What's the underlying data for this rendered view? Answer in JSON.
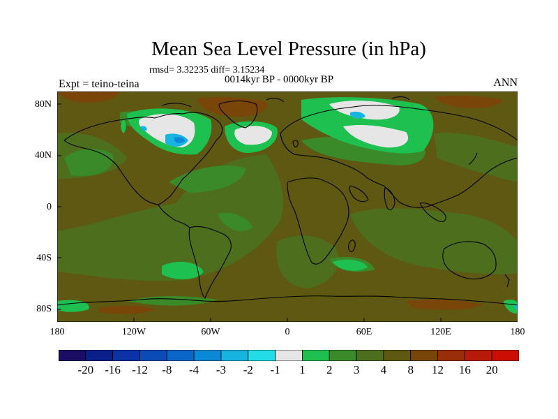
{
  "title": "Mean Sea Level Pressure (in hPa)",
  "stats": "rmsd= 3.32235 diff= 3.15234",
  "period": "0014kyr BP - 0000kyr BP",
  "experiment": "Expt = teino-teina",
  "season": "ANN",
  "lat_labels": [
    "80N",
    "40N",
    "0",
    "40S",
    "80S"
  ],
  "lon_labels": [
    "180",
    "120W",
    "60W",
    "0",
    "60E",
    "120E",
    "180"
  ],
  "colorbar": {
    "labels": [
      "-20",
      "-16",
      "-12",
      "-8",
      "-4",
      "-3",
      "-2",
      "-1",
      "1",
      "2",
      "3",
      "4",
      "8",
      "12",
      "16",
      "20"
    ],
    "colors": [
      "#1b0d63",
      "#0b1f8a",
      "#0d32a6",
      "#0a4bb5",
      "#0a66c8",
      "#0a8ad6",
      "#17b4e0",
      "#22dce8",
      "#e6e6e6",
      "#1ec04f",
      "#3a8a2a",
      "#4d6e1c",
      "#5e5812",
      "#7a4508",
      "#9a2e0a",
      "#b81a0a",
      "#cc0d06"
    ]
  },
  "map_colors": {
    "background": "#5e5812",
    "ocean_mid": "#4d6e1c",
    "ocean_high": "#3a8a2a",
    "bright": "#1ec04f",
    "near_zero": "#e6e6e6",
    "neg_small": "#17b4e0",
    "neg_mid": "#0a8ad6",
    "warm": "#7a4508"
  }
}
